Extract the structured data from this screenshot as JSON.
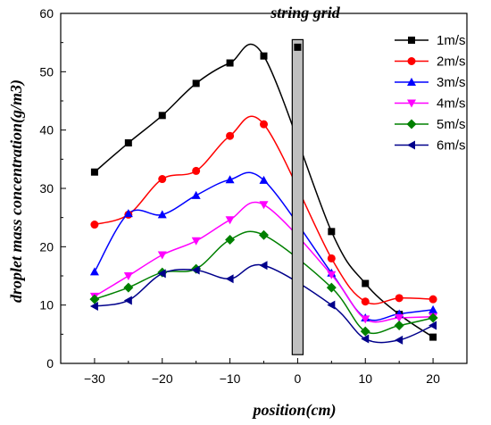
{
  "chart_data": {
    "type": "scatter",
    "xlabel": "position(cm)",
    "ylabel": "droplet mass concentration(g/m3)",
    "annotation": "string grid",
    "xlim": [
      -35,
      25
    ],
    "ylim": [
      0,
      60
    ],
    "xticks": [
      -30,
      -20,
      -10,
      0,
      10,
      20
    ],
    "yticks": [
      0,
      10,
      20,
      30,
      40,
      50,
      60
    ],
    "tick_labels_x": [
      "−30",
      "−20",
      "−10",
      "0",
      "10",
      "20"
    ],
    "tick_labels_y": [
      "0",
      "10",
      "20",
      "30",
      "40",
      "50",
      "60"
    ],
    "legend_position": "top-right",
    "grid": false,
    "obstacle": {
      "label_ref": "string grid",
      "x_range": [
        -0.8,
        0.8
      ],
      "y_range": [
        1.5,
        55.5
      ],
      "color": "#c0c0c0"
    },
    "series": [
      {
        "name": "1m/s",
        "color": "#000000",
        "marker": "square",
        "x": [
          -30,
          -25,
          -20,
          -15,
          -10,
          -5,
          0,
          5,
          10,
          15,
          20
        ],
        "y": [
          32.8,
          37.8,
          42.5,
          48.0,
          51.5,
          52.7,
          54.2,
          22.6,
          13.7,
          8.4,
          4.5
        ]
      },
      {
        "name": "2m/s",
        "color": "#ff0000",
        "marker": "circle",
        "x": [
          -30,
          -25,
          -20,
          -15,
          -10,
          -5,
          5,
          10,
          15,
          20
        ],
        "y": [
          23.8,
          25.5,
          31.6,
          33.0,
          39.0,
          41.0,
          18.0,
          10.6,
          11.2,
          11.0
        ]
      },
      {
        "name": "3m/s",
        "color": "#0000ff",
        "marker": "triangle-up",
        "x": [
          -30,
          -25,
          -20,
          -15,
          -10,
          -5,
          5,
          10,
          15,
          20
        ],
        "y": [
          15.7,
          25.7,
          25.5,
          28.8,
          31.5,
          31.4,
          15.5,
          7.8,
          8.5,
          9.2
        ]
      },
      {
        "name": "4m/s",
        "color": "#ff00ff",
        "marker": "triangle-down",
        "x": [
          -30,
          -25,
          -20,
          -15,
          -10,
          -5,
          5,
          10,
          15,
          20
        ],
        "y": [
          11.5,
          15.0,
          18.6,
          21.0,
          24.6,
          27.2,
          15.2,
          7.6,
          7.8,
          8.0
        ]
      },
      {
        "name": "5m/s",
        "color": "#008000",
        "marker": "diamond",
        "x": [
          -30,
          -25,
          -20,
          -15,
          -10,
          -5,
          5,
          10,
          15,
          20
        ],
        "y": [
          11.0,
          13.0,
          15.6,
          16.2,
          21.2,
          22.0,
          13.0,
          5.5,
          6.5,
          7.8
        ]
      },
      {
        "name": "6m/s",
        "color": "#00008b",
        "marker": "triangle-left",
        "x": [
          -30,
          -25,
          -20,
          -15,
          -10,
          -5,
          5,
          10,
          15,
          20
        ],
        "y": [
          9.8,
          10.8,
          15.4,
          16.0,
          14.5,
          16.8,
          10.0,
          4.2,
          4.0,
          6.5
        ]
      }
    ]
  }
}
